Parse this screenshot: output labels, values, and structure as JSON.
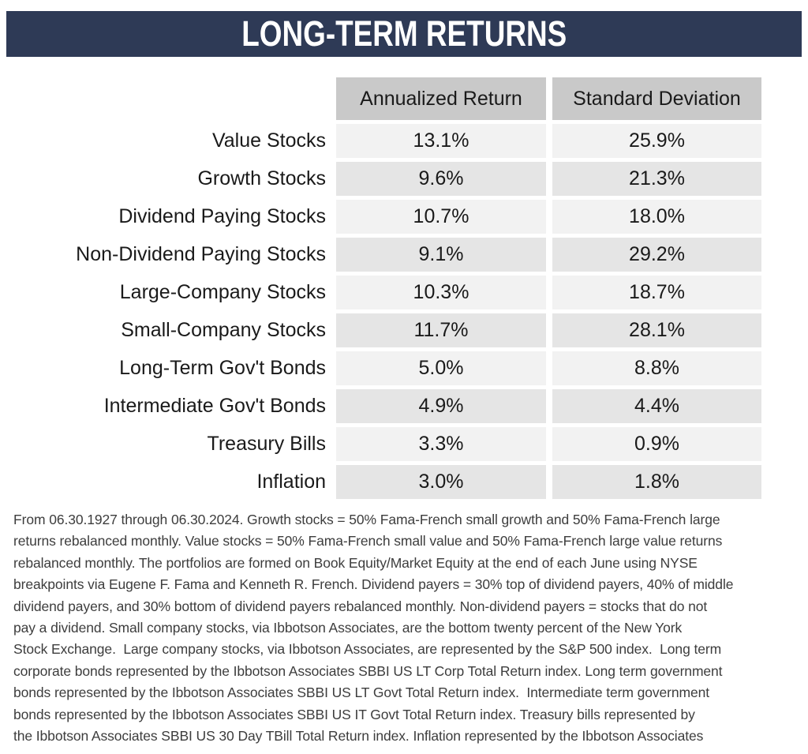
{
  "title": "LONG-TERM RETURNS",
  "colors": {
    "banner_background": "#2e3a56",
    "banner_text": "#ffffff",
    "column_header_background": "#c9c9c9",
    "row_stripe_light": "#f2f2f2",
    "row_stripe_dark": "#e5e5e5",
    "table_text": "#1a1a1a",
    "footnote_text": "#3d3d3d"
  },
  "table": {
    "columns": [
      "Annualized Return",
      "Standard Deviation"
    ],
    "rows": [
      {
        "label": "Value Stocks",
        "annualized_return": "13.1%",
        "standard_deviation": "25.9%"
      },
      {
        "label": "Growth Stocks",
        "annualized_return": "9.6%",
        "standard_deviation": "21.3%"
      },
      {
        "label": "Dividend Paying Stocks",
        "annualized_return": "10.7%",
        "standard_deviation": "18.0%"
      },
      {
        "label": "Non-Dividend Paying Stocks",
        "annualized_return": "9.1%",
        "standard_deviation": "29.2%"
      },
      {
        "label": "Large-Company Stocks",
        "annualized_return": "10.3%",
        "standard_deviation": "18.7%"
      },
      {
        "label": "Small-Company Stocks",
        "annualized_return": "11.7%",
        "standard_deviation": "28.1%"
      },
      {
        "label": "Long-Term Gov't Bonds",
        "annualized_return": "5.0%",
        "standard_deviation": "8.8%"
      },
      {
        "label": "Intermediate Gov't Bonds",
        "annualized_return": "4.9%",
        "standard_deviation": "4.4%"
      },
      {
        "label": "Treasury Bills",
        "annualized_return": "3.3%",
        "standard_deviation": "0.9%"
      },
      {
        "label": "Inflation",
        "annualized_return": "3.0%",
        "standard_deviation": "1.8%"
      }
    ]
  },
  "footnote_lines": [
    "From 06.30.1927 through 06.30.2024. Growth stocks = 50% Fama-French small growth and 50% Fama-French large",
    "returns rebalanced monthly. Value stocks = 50% Fama-French small value and 50% Fama-French large value returns",
    "rebalanced monthly. The portfolios are formed on Book Equity/Market Equity at the end of each June using NYSE",
    "breakpoints via Eugene F. Fama and Kenneth R. French. Dividend payers = 30% top of dividend payers, 40% of middle",
    "dividend payers, and 30% bottom of dividend payers rebalanced monthly. Non-dividend payers = stocks that do not",
    "pay a dividend. Small company stocks, via Ibbotson Associates, are the bottom twenty percent of the New York",
    "Stock Exchange.  Large company stocks, via Ibbotson Associates, are represented by the S&P 500 index.  Long term",
    "corporate bonds represented by the Ibbotson Associates SBBI US LT Corp Total Return index. Long term government",
    "bonds represented by the Ibbotson Associates SBBI US LT Govt Total Return index.  Intermediate term government",
    "bonds represented by the Ibbotson Associates SBBI US IT Govt Total Return index. Treasury bills represented by",
    "the Ibbotson Associates SBBI US 30 Day TBill Total Return index. Inflation represented by the Ibbotson Associates"
  ]
}
